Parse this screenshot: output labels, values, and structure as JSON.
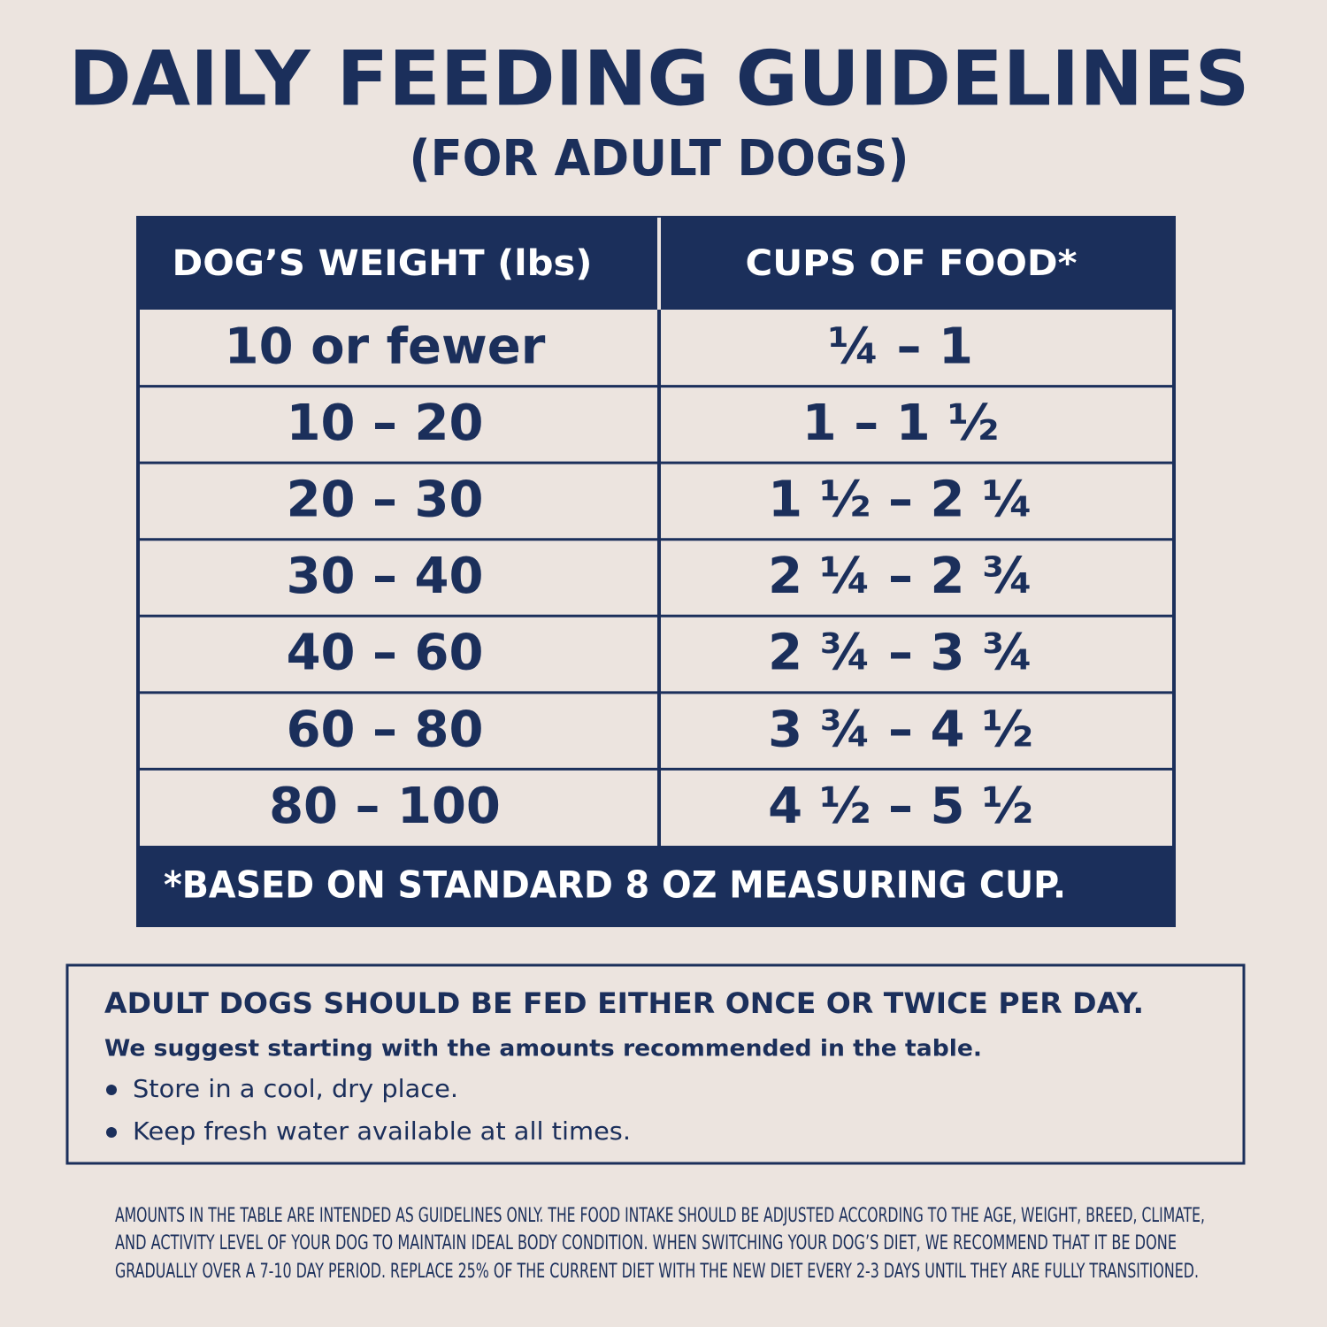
{
  "title": "DAILY FEEDING GUIDELINES",
  "subtitle": "(FOR ADULT DOGS)",
  "table": {
    "header": [
      "DOG’S WEIGHT (lbs)",
      "CUPS OF FOOD*"
    ],
    "rows": [
      [
        "10 or fewer",
        "¼ – 1"
      ],
      [
        "10 – 20",
        "1 – 1 ½"
      ],
      [
        "20 – 30",
        "1 ½ – 2 ¼"
      ],
      [
        "30 – 40",
        "2 ¼ – 2 ¾"
      ],
      [
        "40 – 60",
        "2 ¾ – 3 ¾"
      ],
      [
        "60 – 80",
        "3 ¾ – 4 ½"
      ],
      [
        "80 – 100",
        "4 ½ – 5 ½"
      ]
    ],
    "footnote": "*BASED ON STANDARD 8 OZ MEASURING CUP."
  },
  "info": {
    "heading": "ADULT DOGS SHOULD BE FED EITHER ONCE OR TWICE PER DAY.",
    "subheading": "We suggest starting with the amounts recommended in the table.",
    "bullets": [
      "Store in a cool, dry place.",
      "Keep fresh water available at all times."
    ]
  },
  "disclaimer": [
    "AMOUNTS IN THE TABLE ARE INTENDED AS GUIDELINES ONLY. THE FOOD INTAKE SHOULD BE ADJUSTED ACCORDING TO THE AGE, WEIGHT, BREED, CLIMATE,",
    "AND ACTIVITY LEVEL OF YOUR DOG TO MAINTAIN IDEAL BODY CONDITION. WHEN SWITCHING YOUR DOG’S DIET, WE RECOMMEND THAT IT BE DONE",
    "GRADUALLY OVER A 7-10 DAY PERIOD. REPLACE 25% OF THE CURRENT DIET WITH THE NEW DIET EVERY 2-3 DAYS UNTIL THEY ARE FULLY TRANSITIONED."
  ]
}
